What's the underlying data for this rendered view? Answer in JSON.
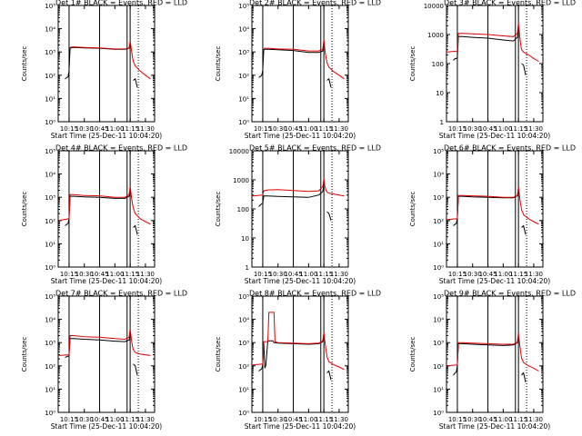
{
  "colors": {
    "events": "#000000",
    "lld": "#e00000",
    "axes": "#000000",
    "background": "#ffffff"
  },
  "chart_data": [
    {
      "type": "line",
      "title": "Det 1# BLACK = Events, RED = LLD",
      "xlabel": "Start Time (25-Dec-11 10:04:20)",
      "ylabel": "Counts/sec",
      "scale": "log",
      "ylim": [
        1,
        100000
      ],
      "ytick_labels": [
        "10⁰",
        "10¹",
        "10²",
        "10³",
        "10⁴",
        "10⁵"
      ],
      "xtick_labels": [
        "10:15",
        "10:30",
        "10:45",
        "11:00",
        "11:15",
        "11:30"
      ],
      "series": [
        {
          "name": "Events",
          "x": [
            "10:10",
            "10:11",
            "10:12",
            "10:13",
            "10:14",
            "10:15",
            "10:16",
            "10:20",
            "10:30",
            "10:45",
            "11:00",
            "11:10",
            "11:14",
            "11:15",
            "11:16",
            "11:17",
            "11:18",
            "11:20",
            "11:22"
          ],
          "y": [
            null,
            70,
            75,
            80,
            85,
            150,
            1500,
            1550,
            1500,
            1450,
            1300,
            1300,
            1450,
            2500,
            null,
            null,
            60,
            70,
            30
          ]
        },
        {
          "name": "LLD",
          "x": [
            "10:15",
            "10:16",
            "10:20",
            "10:30",
            "10:45",
            "11:00",
            "11:10",
            "11:14",
            "11:15",
            "11:16",
            "11:17",
            "11:18",
            "11:20",
            "11:25",
            "11:30",
            "11:35"
          ],
          "y": [
            null,
            1600,
            1650,
            1550,
            1500,
            1350,
            1350,
            1500,
            3000,
            1500,
            700,
            400,
            250,
            150,
            100,
            70
          ]
        }
      ]
    },
    {
      "type": "line",
      "title": "Det 2# BLACK = Events, RED = LLD",
      "xlabel": "Start Time (25-Dec-11 10:04:20)",
      "ylabel": "Counts/sec",
      "scale": "log",
      "ylim": [
        1,
        100000
      ],
      "ytick_labels": [
        "10⁰",
        "10¹",
        "10²",
        "10³",
        "10⁴",
        "10⁵"
      ],
      "xtick_labels": [
        "10:15",
        "10:30",
        "10:45",
        "11:00",
        "11:15",
        "11:30"
      ],
      "series": [
        {
          "name": "Events",
          "x": [
            "10:10",
            "10:11",
            "10:12",
            "10:13",
            "10:14",
            "10:15",
            "10:16",
            "10:20",
            "10:30",
            "10:45",
            "11:00",
            "11:10",
            "11:14",
            "11:15",
            "11:16",
            "11:17",
            "11:18",
            "11:20",
            "11:22"
          ],
          "y": [
            null,
            80,
            85,
            90,
            100,
            160,
            1300,
            1300,
            1250,
            1150,
            950,
            950,
            1100,
            2500,
            null,
            null,
            60,
            70,
            30
          ]
        },
        {
          "name": "LLD",
          "x": [
            "10:15",
            "10:16",
            "10:20",
            "10:30",
            "10:45",
            "11:00",
            "11:10",
            "11:14",
            "11:15",
            "11:16",
            "11:17",
            "11:18",
            "11:20",
            "11:25",
            "11:30",
            "11:35"
          ],
          "y": [
            null,
            1450,
            1450,
            1350,
            1300,
            1100,
            1100,
            1300,
            3500,
            1300,
            600,
            350,
            220,
            140,
            100,
            70
          ]
        }
      ]
    },
    {
      "type": "line",
      "title": "Det 3# BLACK = Events, RED = LLD",
      "xlabel": "Start Time (25-Dec-11 10:04:20)",
      "ylabel": "Counts/sec",
      "scale": "log",
      "ylim": [
        1,
        10000
      ],
      "ytick_labels": [
        "1",
        "10",
        "100",
        "1000",
        "10000"
      ],
      "xtick_labels": [
        "10:15",
        "10:30",
        "10:45",
        "11:00",
        "11:15",
        "11:30"
      ],
      "series": [
        {
          "name": "Events",
          "x": [
            "10:10",
            "10:11",
            "10:12",
            "10:13",
            "10:14",
            "10:15",
            "10:16",
            "10:20",
            "10:30",
            "10:45",
            "11:00",
            "11:10",
            "11:14",
            "11:15",
            "11:16",
            "11:17",
            "11:18",
            "11:20",
            "11:22"
          ],
          "y": [
            null,
            130,
            140,
            150,
            150,
            160,
            850,
            850,
            800,
            750,
            650,
            600,
            800,
            1500,
            null,
            null,
            100,
            90,
            40
          ]
        },
        {
          "name": "LLD",
          "x": [
            "10:05",
            "10:10",
            "10:15",
            "10:16",
            "10:20",
            "10:30",
            "10:45",
            "11:00",
            "11:10",
            "11:14",
            "11:15",
            "11:16",
            "11:17",
            "11:18",
            "11:20",
            "11:25",
            "11:30",
            "11:35"
          ],
          "y": [
            250,
            260,
            270,
            1100,
            1100,
            1050,
            1000,
            900,
            850,
            1100,
            2500,
            1100,
            500,
            300,
            250,
            200,
            150,
            120
          ]
        }
      ]
    },
    {
      "type": "line",
      "title": "Det 4# BLACK = Events, RED = LLD",
      "xlabel": "Start Time (25-Dec-11 10:04:20)",
      "ylabel": "Counts/sec",
      "scale": "log",
      "ylim": [
        1,
        100000
      ],
      "ytick_labels": [
        "10⁰",
        "10¹",
        "10²",
        "10³",
        "10⁴",
        "10⁵"
      ],
      "xtick_labels": [
        "10:15",
        "10:30",
        "10:45",
        "11:00",
        "11:15",
        "11:30"
      ],
      "series": [
        {
          "name": "Events",
          "x": [
            "10:10",
            "10:11",
            "10:12",
            "10:13",
            "10:14",
            "10:15",
            "10:16",
            "10:20",
            "10:30",
            "10:45",
            "11:00",
            "11:10",
            "11:14",
            "11:15",
            "11:16",
            "11:17",
            "11:18",
            "11:20",
            "11:22"
          ],
          "y": [
            null,
            60,
            65,
            70,
            75,
            120,
            1100,
            1100,
            1050,
            1000,
            900,
            900,
            1100,
            2200,
            null,
            null,
            50,
            60,
            25
          ]
        },
        {
          "name": "LLD",
          "x": [
            "10:05",
            "10:10",
            "10:15",
            "10:16",
            "10:20",
            "10:30",
            "10:45",
            "11:00",
            "11:10",
            "11:14",
            "11:15",
            "11:16",
            "11:17",
            "11:18",
            "11:20",
            "11:25",
            "11:30",
            "11:35"
          ],
          "y": [
            100,
            110,
            120,
            1300,
            1300,
            1200,
            1150,
            1000,
            1000,
            1300,
            3000,
            1300,
            600,
            350,
            200,
            120,
            90,
            70
          ]
        }
      ]
    },
    {
      "type": "line",
      "title": "Det 5# BLACK = Events, RED = LLD",
      "xlabel": "Start Time (25-Dec-11 10:04:20)",
      "ylabel": "Counts/sec",
      "scale": "log",
      "ylim": [
        1,
        10000
      ],
      "ytick_labels": [
        "1",
        "10",
        "100",
        "1000",
        "10000"
      ],
      "xtick_labels": [
        "10:15",
        "10:30",
        "10:45",
        "11:00",
        "11:15",
        "11:30"
      ],
      "series": [
        {
          "name": "Events",
          "x": [
            "10:10",
            "10:11",
            "10:12",
            "10:13",
            "10:14",
            "10:15",
            "10:16",
            "10:20",
            "10:30",
            "10:45",
            "11:00",
            "11:10",
            "11:14",
            "11:15",
            "11:16",
            "11:17",
            "11:18",
            "11:20",
            "11:22"
          ],
          "y": [
            null,
            120,
            130,
            140,
            150,
            160,
            280,
            280,
            270,
            260,
            250,
            300,
            400,
            700,
            null,
            null,
            80,
            70,
            40
          ]
        },
        {
          "name": "LLD",
          "x": [
            "10:05",
            "10:10",
            "10:15",
            "10:16",
            "10:20",
            "10:30",
            "10:45",
            "11:00",
            "11:10",
            "11:14",
            "11:15",
            "11:16",
            "11:17",
            "11:18",
            "11:20",
            "11:25",
            "11:30",
            "11:35"
          ],
          "y": [
            280,
            290,
            300,
            420,
            450,
            460,
            430,
            400,
            420,
            600,
            1100,
            600,
            450,
            380,
            350,
            320,
            300,
            280
          ]
        }
      ]
    },
    {
      "type": "line",
      "title": "Det 6# BLACK = Events, RED = LLD",
      "xlabel": "Start Time (25-Dec-11 10:04:20)",
      "ylabel": "Counts/sec",
      "scale": "log",
      "ylim": [
        1,
        100000
      ],
      "ytick_labels": [
        "10⁰",
        "10¹",
        "10²",
        "10³",
        "10⁴",
        "10⁵"
      ],
      "xtick_labels": [
        "10:15",
        "10:30",
        "10:45",
        "11:00",
        "11:15",
        "11:30"
      ],
      "series": [
        {
          "name": "Events",
          "x": [
            "10:10",
            "10:11",
            "10:12",
            "10:13",
            "10:14",
            "10:15",
            "10:16",
            "10:20",
            "10:30",
            "10:45",
            "11:00",
            "11:10",
            "11:14",
            "11:15",
            "11:16",
            "11:17",
            "11:18",
            "11:20",
            "11:22"
          ],
          "y": [
            null,
            60,
            65,
            70,
            75,
            120,
            1100,
            1100,
            1050,
            1000,
            950,
            950,
            1150,
            2300,
            null,
            null,
            50,
            60,
            25
          ]
        },
        {
          "name": "LLD",
          "x": [
            "10:05",
            "10:10",
            "10:15",
            "10:16",
            "10:20",
            "10:30",
            "10:45",
            "11:00",
            "11:10",
            "11:14",
            "11:15",
            "11:16",
            "11:17",
            "11:18",
            "11:20",
            "11:25",
            "11:30",
            "11:35"
          ],
          "y": [
            110,
            115,
            120,
            1200,
            1200,
            1150,
            1100,
            1000,
            1000,
            1200,
            2800,
            1200,
            550,
            300,
            180,
            120,
            90,
            70
          ]
        }
      ]
    },
    {
      "type": "line",
      "title": "Det 7# BLACK = Events, RED = LLD",
      "xlabel": "Start Time (25-Dec-11 10:04:20)",
      "ylabel": "Counts/sec",
      "scale": "log",
      "ylim": [
        1,
        100000
      ],
      "ytick_labels": [
        "10⁰",
        "10¹",
        "10²",
        "10³",
        "10⁴",
        "10⁵"
      ],
      "xtick_labels": [
        "10:15",
        "10:30",
        "10:45",
        "11:00",
        "11:15",
        "11:30"
      ],
      "series": [
        {
          "name": "Events",
          "x": [
            "10:10",
            "10:11",
            "10:12",
            "10:13",
            "10:14",
            "10:15",
            "10:16",
            "10:20",
            "10:30",
            "10:45",
            "11:00",
            "11:10",
            "11:14",
            "11:15",
            "11:16",
            "11:17",
            "11:18",
            "11:20",
            "11:22"
          ],
          "y": [
            null,
            230,
            240,
            250,
            260,
            280,
            1500,
            1500,
            1400,
            1300,
            1150,
            1100,
            1300,
            2500,
            null,
            null,
            120,
            100,
            40
          ]
        },
        {
          "name": "LLD",
          "x": [
            "10:05",
            "10:10",
            "10:15",
            "10:16",
            "10:20",
            "10:30",
            "10:45",
            "11:00",
            "11:10",
            "11:14",
            "11:15",
            "11:16",
            "11:17",
            "11:18",
            "11:20",
            "11:25",
            "11:30",
            "11:35"
          ],
          "y": [
            280,
            290,
            300,
            2000,
            2000,
            1800,
            1700,
            1500,
            1400,
            1700,
            4000,
            1700,
            800,
            500,
            380,
            320,
            300,
            280
          ]
        }
      ]
    },
    {
      "type": "line",
      "title": "Det 8# BLACK = Events, RED = LLD",
      "xlabel": "Start Time (25-Dec-11 10:04:20)",
      "ylabel": "Counts/sec",
      "scale": "log",
      "ylim": [
        1,
        100000
      ],
      "ytick_labels": [
        "10⁰",
        "10¹",
        "10²",
        "10³",
        "10⁴",
        "10⁵"
      ],
      "xtick_labels": [
        "10:15",
        "10:30",
        "10:45",
        "11:00",
        "11:15",
        "11:30"
      ],
      "series": [
        {
          "name": "Events",
          "x": [
            "10:10",
            "10:11",
            "10:12",
            "10:13",
            "10:14",
            "10:15",
            "10:16",
            "10:17",
            "10:18",
            "10:20",
            "10:25",
            "10:26",
            "10:30",
            "10:45",
            "11:00",
            "11:10",
            "11:14",
            "11:15",
            "11:16",
            "11:17",
            "11:18",
            "11:20",
            "11:22"
          ],
          "y": [
            null,
            60,
            65,
            70,
            75,
            110,
            1000,
            80,
            100,
            1200,
            1200,
            1000,
            950,
            900,
            850,
            900,
            1100,
            2300,
            null,
            null,
            50,
            60,
            25
          ]
        },
        {
          "name": "LLD",
          "x": [
            "10:05",
            "10:10",
            "10:15",
            "10:16",
            "10:20",
            "10:21",
            "10:26",
            "10:27",
            "10:30",
            "10:45",
            "11:00",
            "11:10",
            "11:14",
            "11:15",
            "11:16",
            "11:17",
            "11:18",
            "11:20",
            "11:25",
            "11:30",
            "11:35"
          ],
          "y": [
            110,
            115,
            120,
            1100,
            1100,
            20000,
            20000,
            1100,
            1000,
            950,
            900,
            950,
            1200,
            2800,
            1200,
            500,
            250,
            150,
            110,
            90,
            70
          ]
        }
      ]
    },
    {
      "type": "line",
      "title": "Det 9# BLACK = Events, RED = LLD",
      "xlabel": "Start Time (25-Dec-11 10:04:20)",
      "ylabel": "Counts/sec",
      "scale": "log",
      "ylim": [
        1,
        100000
      ],
      "ytick_labels": [
        "10⁰",
        "10¹",
        "10²",
        "10³",
        "10⁴",
        "10⁵"
      ],
      "xtick_labels": [
        "10:15",
        "10:30",
        "10:45",
        "11:00",
        "11:15",
        "11:30"
      ],
      "series": [
        {
          "name": "Events",
          "x": [
            "10:10",
            "10:11",
            "10:12",
            "10:13",
            "10:14",
            "10:15",
            "10:16",
            "10:20",
            "10:30",
            "10:45",
            "11:00",
            "11:10",
            "11:14",
            "11:15",
            "11:16",
            "11:17",
            "11:18",
            "11:20",
            "11:22"
          ],
          "y": [
            null,
            40,
            45,
            50,
            55,
            100,
            900,
            900,
            850,
            800,
            750,
            800,
            1000,
            2000,
            null,
            null,
            40,
            50,
            20
          ]
        },
        {
          "name": "LLD",
          "x": [
            "10:05",
            "10:10",
            "10:15",
            "10:16",
            "10:20",
            "10:30",
            "10:45",
            "11:00",
            "11:10",
            "11:14",
            "11:15",
            "11:16",
            "11:17",
            "11:18",
            "11:20",
            "11:25",
            "11:30",
            "11:35"
          ],
          "y": [
            100,
            105,
            110,
            1000,
            1000,
            950,
            900,
            850,
            850,
            1050,
            2600,
            1000,
            450,
            220,
            140,
            100,
            80,
            60
          ]
        }
      ]
    }
  ]
}
